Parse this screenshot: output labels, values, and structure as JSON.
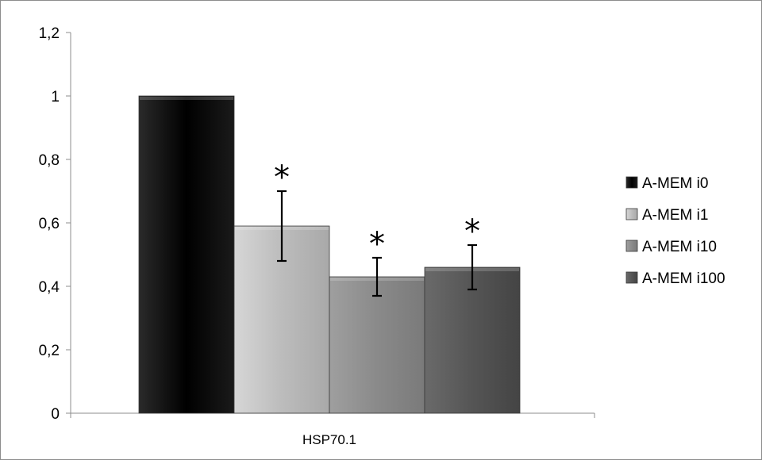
{
  "chart_data": {
    "type": "bar",
    "categories": [
      "HSP70.1"
    ],
    "series": [
      {
        "name": "A-MEM i0",
        "values": [
          1.0
        ],
        "error": [
          null
        ],
        "annotation": "",
        "color": "#0a0a0a"
      },
      {
        "name": "A-MEM i1",
        "values": [
          0.59
        ],
        "error": [
          0.11
        ],
        "annotation": "*",
        "color": "#bdbdbd"
      },
      {
        "name": "A-MEM i10",
        "values": [
          0.43
        ],
        "error": [
          0.06
        ],
        "annotation": "*",
        "color": "#8c8c8c"
      },
      {
        "name": "A-MEM i100",
        "values": [
          0.46
        ],
        "error": [
          0.07
        ],
        "annotation": "*",
        "color": "#565656"
      }
    ],
    "yticks": [
      "0",
      "0,2",
      "0,4",
      "0,6",
      "0,8",
      "1",
      "1,2"
    ],
    "ylim": [
      0,
      1.2
    ],
    "legend_position": "right",
    "grid": false
  }
}
